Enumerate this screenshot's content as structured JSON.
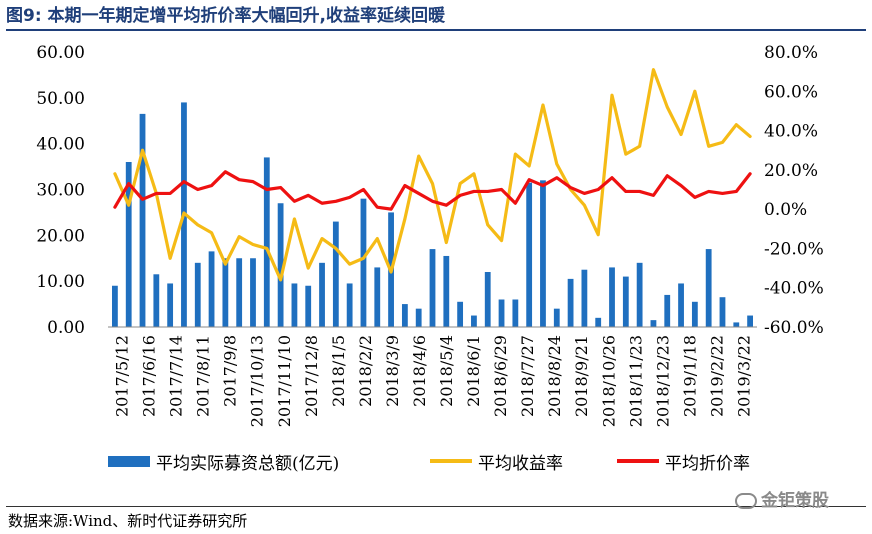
{
  "figure": {
    "title": "图9:   本期一年期定增平均折价率大幅回升,收益率延续回暖",
    "source": "数据来源:Wind、新时代证券研究所",
    "watermark": "金钜策股",
    "colors": {
      "bars": "#1f6fbf",
      "yield_line": "#f5bb16",
      "discount_line": "#ee1111",
      "title": "#1f3f7a"
    }
  },
  "chart_data": {
    "type": "bar+line",
    "left_axis": {
      "ticks": [
        "0.00",
        "10.00",
        "20.00",
        "30.00",
        "40.00",
        "50.00",
        "60.00"
      ],
      "range": [
        0,
        60
      ]
    },
    "right_axis": {
      "ticks": [
        "-60.0%",
        "-40.0%",
        "-20.0%",
        "0.0%",
        "20.0%",
        "40.0%",
        "60.0%",
        "80.0%"
      ],
      "range": [
        -60,
        80
      ]
    },
    "x_tick_labels": [
      "2017/5/12",
      "2017/6/16",
      "2017/7/14",
      "2017/8/11",
      "2017/9/8",
      "2017/10/13",
      "2017/11/10",
      "2017/12/8",
      "2018/1/5",
      "2018/2/2",
      "2018/3/9",
      "2018/4/6",
      "2018/5/4",
      "2018/6/1",
      "2018/6/29",
      "2018/7/27",
      "2018/8/24",
      "2018/9/21",
      "2018/10/26",
      "2018/11/23",
      "2018/12/23",
      "2019/1/18",
      "2019/2/22",
      "2019/3/22"
    ],
    "series": [
      {
        "name": "平均实际募资总额(亿元)",
        "type": "bar",
        "axis": "left",
        "values": [
          9,
          36,
          46.5,
          11.5,
          9.5,
          49,
          14,
          16.5,
          15,
          15,
          15,
          37,
          27,
          9.5,
          9,
          14,
          23,
          9.5,
          28,
          13,
          25,
          5,
          4,
          17,
          15.5,
          5.5,
          2.5,
          12,
          6,
          6,
          31.5,
          32,
          4,
          10.5,
          12.5,
          2,
          13,
          11,
          14,
          1.5,
          7,
          9.5,
          5.5,
          17,
          6.5,
          1,
          2.5
        ]
      },
      {
        "name": "平均收益率",
        "type": "line",
        "axis": "right",
        "values": [
          18,
          2,
          30,
          8,
          -25,
          -2,
          -8,
          -12,
          -28,
          -14,
          -18,
          -20,
          -36,
          -5,
          -30,
          -15,
          -20,
          -28,
          -25,
          -15,
          -32,
          -5,
          27,
          13,
          -17,
          13,
          18,
          -8,
          -16,
          28,
          22,
          53,
          23,
          10,
          2,
          -13,
          58,
          28,
          32,
          71,
          52,
          38,
          60,
          32,
          34,
          43,
          37
        ]
      },
      {
        "name": "平均折价率",
        "type": "line",
        "axis": "right",
        "values": [
          1,
          13,
          5,
          8,
          8,
          14,
          10,
          12,
          19,
          15,
          14,
          10,
          11,
          4,
          7,
          3,
          4,
          6,
          10,
          1,
          0,
          12,
          8,
          4,
          2,
          7,
          9,
          9,
          10,
          3,
          15,
          12,
          16,
          11,
          8,
          10,
          16,
          9,
          9,
          7,
          17,
          12,
          6,
          9,
          8,
          9,
          18
        ]
      }
    ],
    "legend": "bottom",
    "grid": false
  }
}
